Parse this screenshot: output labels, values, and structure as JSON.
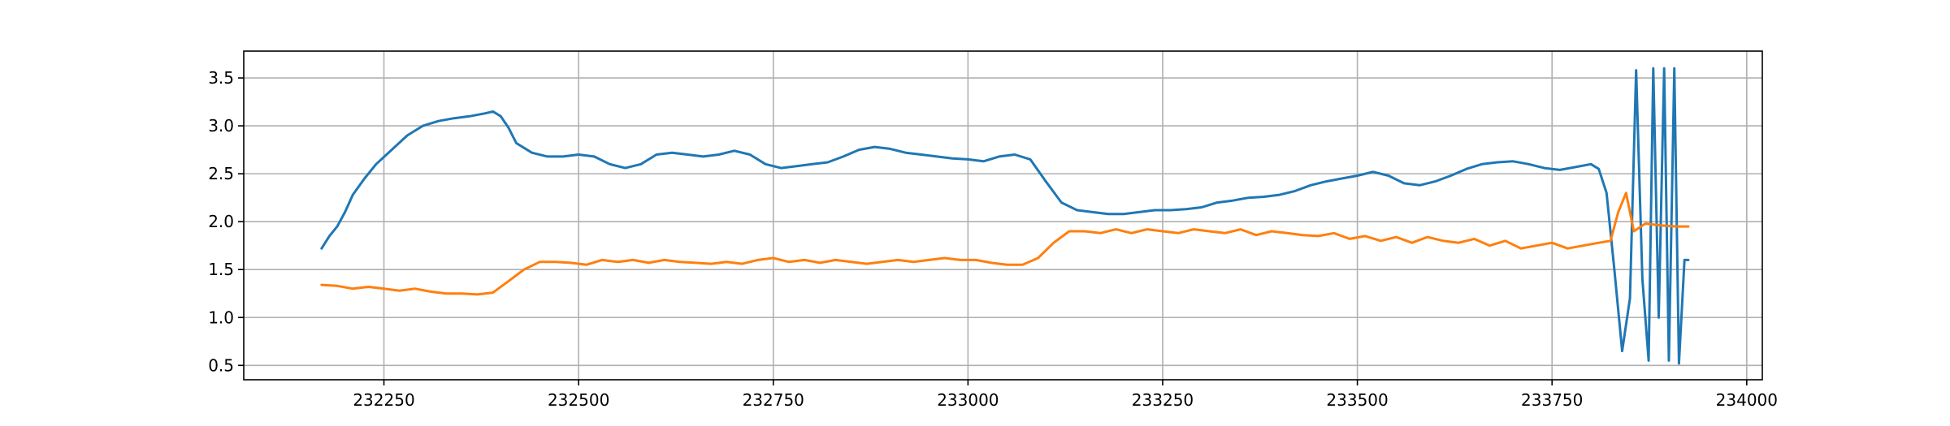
{
  "chart_data": {
    "type": "line",
    "title": "",
    "xlabel": "",
    "ylabel": "",
    "xlim": [
      232070,
      234020
    ],
    "ylim": [
      0.35,
      3.78
    ],
    "grid": true,
    "legend": "none",
    "x_ticks": [
      232250,
      232500,
      232750,
      233000,
      233250,
      233500,
      233750,
      234000
    ],
    "y_ticks": [
      0.5,
      1.0,
      1.5,
      2.0,
      2.5,
      3.0,
      3.5
    ],
    "series": [
      {
        "color": "#1f77b4",
        "x": [
          232170,
          232180,
          232190,
          232200,
          232210,
          232225,
          232240,
          232260,
          232280,
          232300,
          232320,
          232340,
          232360,
          232380,
          232390,
          232400,
          232410,
          232420,
          232440,
          232460,
          232480,
          232500,
          232520,
          232540,
          232560,
          232580,
          232600,
          232620,
          232640,
          232660,
          232680,
          232700,
          232720,
          232740,
          232760,
          232780,
          232800,
          232820,
          232840,
          232860,
          232880,
          232900,
          232920,
          232940,
          232960,
          232980,
          233000,
          233020,
          233040,
          233060,
          233080,
          233100,
          233120,
          233140,
          233160,
          233180,
          233200,
          233220,
          233240,
          233260,
          233280,
          233300,
          233320,
          233340,
          233360,
          233380,
          233400,
          233420,
          233440,
          233460,
          233480,
          233500,
          233520,
          233540,
          233560,
          233580,
          233600,
          233620,
          233640,
          233660,
          233680,
          233700,
          233720,
          233740,
          233760,
          233780,
          233800,
          233810,
          233820,
          233830,
          233840,
          233850,
          233858,
          233866,
          233874,
          233880,
          233887,
          233894,
          233900,
          233907,
          233913,
          233920,
          233925
        ],
        "values": [
          1.72,
          1.85,
          1.95,
          2.1,
          2.28,
          2.45,
          2.6,
          2.75,
          2.9,
          3.0,
          3.05,
          3.08,
          3.1,
          3.13,
          3.15,
          3.1,
          2.98,
          2.82,
          2.72,
          2.68,
          2.68,
          2.7,
          2.68,
          2.6,
          2.56,
          2.6,
          2.7,
          2.72,
          2.7,
          2.68,
          2.7,
          2.74,
          2.7,
          2.6,
          2.56,
          2.58,
          2.6,
          2.62,
          2.68,
          2.75,
          2.78,
          2.76,
          2.72,
          2.7,
          2.68,
          2.66,
          2.65,
          2.63,
          2.68,
          2.7,
          2.65,
          2.42,
          2.2,
          2.12,
          2.1,
          2.08,
          2.08,
          2.1,
          2.12,
          2.12,
          2.13,
          2.15,
          2.2,
          2.22,
          2.25,
          2.26,
          2.28,
          2.32,
          2.38,
          2.42,
          2.45,
          2.48,
          2.52,
          2.48,
          2.4,
          2.38,
          2.42,
          2.48,
          2.55,
          2.6,
          2.62,
          2.63,
          2.6,
          2.56,
          2.54,
          2.57,
          2.6,
          2.55,
          2.3,
          1.5,
          0.65,
          1.2,
          3.58,
          1.4,
          0.55,
          3.6,
          1.0,
          3.6,
          0.55,
          3.6,
          0.52,
          1.6,
          1.6
        ]
      },
      {
        "color": "#ff7f0e",
        "x": [
          232170,
          232190,
          232210,
          232230,
          232250,
          232270,
          232290,
          232310,
          232330,
          232350,
          232370,
          232390,
          232410,
          232430,
          232450,
          232470,
          232490,
          232510,
          232530,
          232550,
          232570,
          232590,
          232610,
          232630,
          232650,
          232670,
          232690,
          232710,
          232730,
          232750,
          232770,
          232790,
          232810,
          232830,
          232850,
          232870,
          232890,
          232910,
          232930,
          232950,
          232970,
          232990,
          233010,
          233030,
          233050,
          233070,
          233090,
          233110,
          233130,
          233150,
          233170,
          233190,
          233210,
          233230,
          233250,
          233270,
          233290,
          233310,
          233330,
          233350,
          233370,
          233390,
          233410,
          233430,
          233450,
          233470,
          233490,
          233510,
          233530,
          233550,
          233570,
          233590,
          233610,
          233630,
          233650,
          233670,
          233690,
          233710,
          233730,
          233750,
          233770,
          233790,
          233810,
          233825,
          233835,
          233845,
          233855,
          233870,
          233890,
          233910,
          233925
        ],
        "values": [
          1.34,
          1.33,
          1.3,
          1.32,
          1.3,
          1.28,
          1.3,
          1.27,
          1.25,
          1.25,
          1.24,
          1.26,
          1.38,
          1.5,
          1.58,
          1.58,
          1.57,
          1.55,
          1.6,
          1.58,
          1.6,
          1.57,
          1.6,
          1.58,
          1.57,
          1.56,
          1.58,
          1.56,
          1.6,
          1.62,
          1.58,
          1.6,
          1.57,
          1.6,
          1.58,
          1.56,
          1.58,
          1.6,
          1.58,
          1.6,
          1.62,
          1.6,
          1.6,
          1.57,
          1.55,
          1.55,
          1.62,
          1.78,
          1.9,
          1.9,
          1.88,
          1.92,
          1.88,
          1.92,
          1.9,
          1.88,
          1.92,
          1.9,
          1.88,
          1.92,
          1.86,
          1.9,
          1.88,
          1.86,
          1.85,
          1.88,
          1.82,
          1.85,
          1.8,
          1.84,
          1.78,
          1.84,
          1.8,
          1.78,
          1.82,
          1.75,
          1.8,
          1.72,
          1.75,
          1.78,
          1.72,
          1.75,
          1.78,
          1.8,
          2.1,
          2.3,
          1.9,
          1.98,
          1.96,
          1.95,
          1.95
        ]
      }
    ]
  }
}
